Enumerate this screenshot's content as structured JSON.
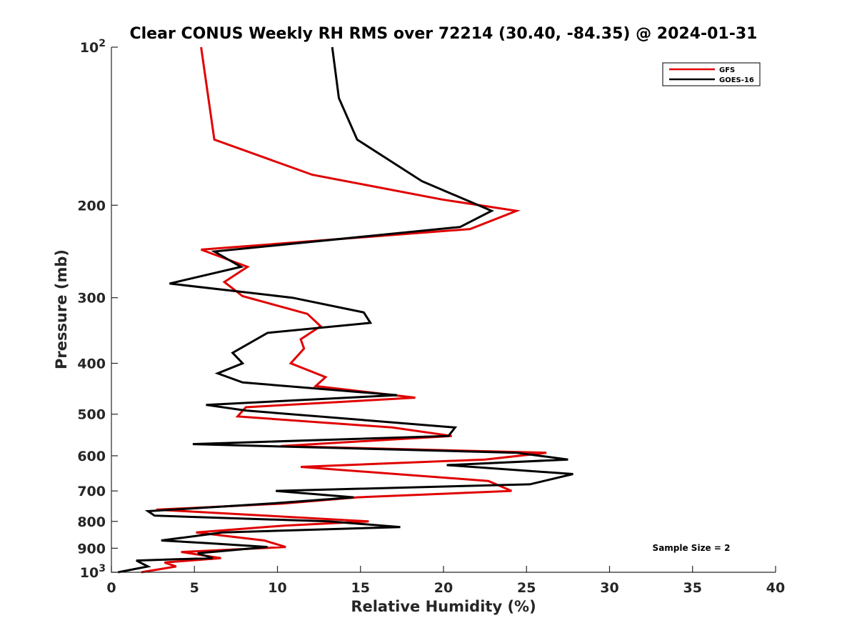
{
  "chart_data": {
    "type": "line",
    "title": "Clear CONUS Weekly RH RMS over 72214 (30.40, -84.35) @ 2024-01-31",
    "xlabel": "Relative Humidity (%)",
    "ylabel": "Pressure (mb)",
    "xlim": [
      0,
      40
    ],
    "ylim": [
      100,
      1000
    ],
    "yscale": "log",
    "y_reversed": true,
    "grid": false,
    "legend_position": "top-right",
    "x_ticks": [
      0,
      5,
      10,
      15,
      20,
      25,
      30,
      35,
      40
    ],
    "x_tick_labels": [
      "0",
      "5",
      "10",
      "15",
      "20",
      "25",
      "30",
      "35",
      "40"
    ],
    "y_ticks": [
      100,
      200,
      300,
      400,
      500,
      600,
      700,
      800,
      900,
      1000
    ],
    "y_tick_labels": [
      {
        "base": "10",
        "exp": "2"
      },
      {
        "text": "200"
      },
      {
        "text": "300"
      },
      {
        "text": "400"
      },
      {
        "text": "500"
      },
      {
        "text": "600"
      },
      {
        "text": "700"
      },
      {
        "text": "800"
      },
      {
        "text": "900"
      },
      {
        "base": "10",
        "exp": "3"
      }
    ],
    "annotation": "Sample Size = 2",
    "series": [
      {
        "name": "GFS",
        "color": "#e00000",
        "points": [
          [
            5.4,
            100
          ],
          [
            6.2,
            150
          ],
          [
            12.1,
            175
          ],
          [
            19.9,
            195
          ],
          [
            24.4,
            205
          ],
          [
            21.6,
            222
          ],
          [
            5.4,
            243
          ],
          [
            8.2,
            262
          ],
          [
            6.8,
            280
          ],
          [
            7.9,
            298
          ],
          [
            11.8,
            322
          ],
          [
            12.6,
            340
          ],
          [
            11.4,
            360
          ],
          [
            11.6,
            375
          ],
          [
            10.8,
            400
          ],
          [
            12.9,
            425
          ],
          [
            12.3,
            442
          ],
          [
            18.3,
            465
          ],
          [
            8.1,
            485
          ],
          [
            7.6,
            505
          ],
          [
            16.9,
            530
          ],
          [
            20.5,
            550
          ],
          [
            10.2,
            575
          ],
          [
            26.2,
            592
          ],
          [
            22.5,
            610
          ],
          [
            11.4,
            630
          ],
          [
            22.7,
            670
          ],
          [
            24.1,
            700
          ],
          [
            14.8,
            720
          ],
          [
            10.3,
            740
          ],
          [
            2.7,
            760
          ],
          [
            9.3,
            780
          ],
          [
            15.5,
            800
          ],
          [
            10.4,
            815
          ],
          [
            5.1,
            840
          ],
          [
            9.2,
            870
          ],
          [
            10.5,
            895
          ],
          [
            4.2,
            915
          ],
          [
            6.6,
            940
          ],
          [
            3.2,
            958
          ],
          [
            3.9,
            975
          ],
          [
            1.8,
            1000
          ]
        ]
      },
      {
        "name": "GOES-16",
        "color": "#000000",
        "points": [
          [
            13.3,
            100
          ],
          [
            13.7,
            125
          ],
          [
            14.8,
            150
          ],
          [
            18.7,
            180
          ],
          [
            22.9,
            205
          ],
          [
            21.0,
            220
          ],
          [
            6.2,
            245
          ],
          [
            7.8,
            262
          ],
          [
            3.5,
            282
          ],
          [
            10.9,
            300
          ],
          [
            15.2,
            320
          ],
          [
            15.6,
            335
          ],
          [
            9.4,
            350
          ],
          [
            7.3,
            382
          ],
          [
            7.9,
            400
          ],
          [
            6.4,
            418
          ],
          [
            7.9,
            435
          ],
          [
            17.2,
            460
          ],
          [
            5.7,
            480
          ],
          [
            8.1,
            492
          ],
          [
            20.7,
            530
          ],
          [
            20.3,
            550
          ],
          [
            4.9,
            570
          ],
          [
            24.4,
            592
          ],
          [
            27.5,
            610
          ],
          [
            20.2,
            625
          ],
          [
            27.8,
            650
          ],
          [
            25.2,
            680
          ],
          [
            9.9,
            700
          ],
          [
            14.6,
            720
          ],
          [
            9.5,
            740
          ],
          [
            2.2,
            765
          ],
          [
            2.6,
            780
          ],
          [
            13.1,
            800
          ],
          [
            17.4,
            820
          ],
          [
            6.7,
            840
          ],
          [
            3.0,
            870
          ],
          [
            5.8,
            880
          ],
          [
            9.4,
            895
          ],
          [
            5.2,
            920
          ],
          [
            6.1,
            940
          ],
          [
            1.5,
            950
          ],
          [
            2.2,
            975
          ],
          [
            0.4,
            1000
          ]
        ]
      }
    ]
  }
}
